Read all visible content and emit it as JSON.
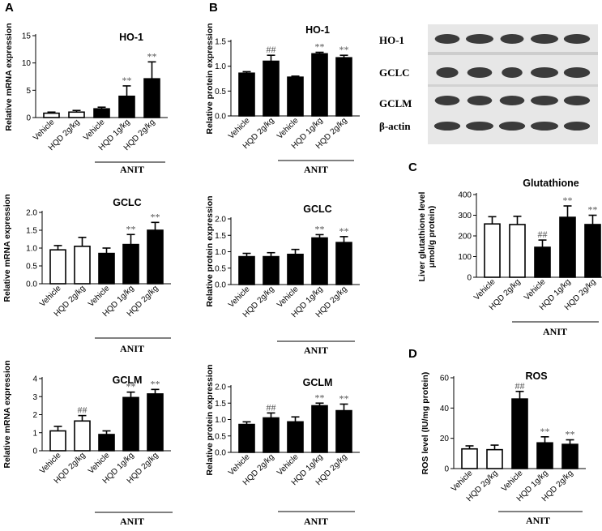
{
  "panel_labels": [
    "A",
    "B",
    "C",
    "D"
  ],
  "blot": {
    "labels": [
      "HO-1",
      "GCLC",
      "GCLM",
      "β-actin"
    ],
    "lanes": 5
  },
  "chart_data": [
    {
      "id": "A1",
      "type": "bar",
      "title": "HO-1",
      "ylabel": "Relative mRNA expression",
      "ylim": [
        0,
        15
      ],
      "yticks": [
        0,
        5,
        10,
        15
      ],
      "categories": [
        "Vehicle",
        "HQD 2g/kg",
        "Vehicle",
        "HQD 1g/kg",
        "HQD 2g/kg"
      ],
      "values": [
        0.8,
        1.0,
        1.6,
        3.9,
        7.1
      ],
      "errors": [
        0.2,
        0.3,
        0.3,
        1.9,
        3.1
      ],
      "bar_fill": [
        "white",
        "white",
        "black",
        "black",
        "black"
      ],
      "annotations": [
        "",
        "",
        "",
        "**",
        "**"
      ],
      "group_label": "ANIT"
    },
    {
      "id": "A2",
      "type": "bar",
      "title": "GCLC",
      "ylabel": "Relative mRNA expression",
      "ylim": [
        0,
        2.0
      ],
      "yticks": [
        0.0,
        0.5,
        1.0,
        1.5,
        2.0
      ],
      "categories": [
        "Vehicle",
        "HQD 2g/kg",
        "Vehicle",
        "HQD 1g/kg",
        "HQD 2g/kg"
      ],
      "values": [
        0.95,
        1.05,
        0.85,
        1.1,
        1.5
      ],
      "errors": [
        0.12,
        0.25,
        0.15,
        0.28,
        0.22
      ],
      "bar_fill": [
        "white",
        "white",
        "black",
        "black",
        "black"
      ],
      "annotations": [
        "",
        "",
        "",
        "**",
        "**"
      ],
      "group_label": "ANIT"
    },
    {
      "id": "A3",
      "type": "bar",
      "title": "GCLM",
      "ylabel": "Relative mRNA expression",
      "ylim": [
        0,
        4
      ],
      "yticks": [
        0,
        1,
        2,
        3,
        4
      ],
      "categories": [
        "Vehicle",
        "HQD 2g/kg",
        "Vehicle",
        "HQD 1g/kg",
        "HQD 2g/kg"
      ],
      "values": [
        1.1,
        1.65,
        0.9,
        2.95,
        3.15
      ],
      "errors": [
        0.25,
        0.3,
        0.2,
        0.3,
        0.25
      ],
      "bar_fill": [
        "white",
        "white",
        "black",
        "black",
        "black"
      ],
      "annotations": [
        "",
        "##",
        "",
        "**",
        "**"
      ],
      "group_label": "ANIT"
    },
    {
      "id": "B1",
      "type": "bar",
      "title": "HO-1",
      "ylabel": "Relative protein expression",
      "ylim": [
        0,
        1.5
      ],
      "yticks": [
        0.0,
        0.5,
        1.0,
        1.5
      ],
      "categories": [
        "Vehicle",
        "HQD 2g/kg",
        "Vehicle",
        "HQD 1g/kg",
        "HQD 2g/kg"
      ],
      "values": [
        0.86,
        1.1,
        0.78,
        1.25,
        1.17
      ],
      "errors": [
        0.03,
        0.12,
        0.02,
        0.03,
        0.05
      ],
      "bar_fill": [
        "black",
        "black",
        "black",
        "black",
        "black"
      ],
      "annotations": [
        "",
        "##",
        "",
        "**",
        "**"
      ],
      "group_label": "ANIT"
    },
    {
      "id": "B2",
      "type": "bar",
      "title": "GCLC",
      "ylabel": "Relative protein expression",
      "ylim": [
        0,
        2.0
      ],
      "yticks": [
        0.0,
        0.5,
        1.0,
        1.5,
        2.0
      ],
      "categories": [
        "Vehicle",
        "HQD 2g/kg",
        "Vehicle",
        "HQD 1g/kg",
        "HQD 2g/kg"
      ],
      "values": [
        0.85,
        0.85,
        0.92,
        1.42,
        1.28
      ],
      "errors": [
        0.1,
        0.12,
        0.15,
        0.1,
        0.18
      ],
      "bar_fill": [
        "black",
        "black",
        "black",
        "black",
        "black"
      ],
      "annotations": [
        "",
        "",
        "",
        "**",
        "**"
      ],
      "group_label": "ANIT"
    },
    {
      "id": "B3",
      "type": "bar",
      "title": "GCLM",
      "ylabel": "Relative protein expression",
      "ylim": [
        0,
        2.0
      ],
      "yticks": [
        0.0,
        0.5,
        1.0,
        1.5,
        2.0
      ],
      "categories": [
        "Vehicle",
        "HQD 2g/kg",
        "Vehicle",
        "HQD 1g/kg",
        "HQD 2g/kg"
      ],
      "values": [
        0.85,
        1.05,
        0.93,
        1.42,
        1.27
      ],
      "errors": [
        0.08,
        0.15,
        0.15,
        0.08,
        0.2
      ],
      "bar_fill": [
        "black",
        "black",
        "black",
        "black",
        "black"
      ],
      "annotations": [
        "",
        "##",
        "",
        "**",
        "**"
      ],
      "group_label": "ANIT"
    },
    {
      "id": "C",
      "type": "bar",
      "title": "Glutathione",
      "ylabel": [
        "Liver glutathione level",
        "μmol/g protein)"
      ],
      "ylim": [
        0,
        400
      ],
      "yticks": [
        0,
        100,
        200,
        300,
        400
      ],
      "categories": [
        "Vehicle",
        "HQD 2g/kg",
        "Vehicle",
        "HQD 1g/kg",
        "HQD 2g/kg"
      ],
      "values": [
        258,
        255,
        145,
        290,
        255
      ],
      "errors": [
        35,
        40,
        35,
        55,
        45
      ],
      "bar_fill": [
        "white",
        "white",
        "black",
        "black",
        "black"
      ],
      "annotations": [
        "",
        "",
        "##",
        "**",
        "**"
      ],
      "group_label": "ANIT"
    },
    {
      "id": "D",
      "type": "bar",
      "title": "ROS",
      "ylabel": "ROS level (IU/mg protein)",
      "ylim": [
        0,
        60
      ],
      "yticks": [
        0,
        20,
        40,
        60
      ],
      "categories": [
        "Vehicle",
        "HQD 2g/kg",
        "Vehicle",
        "HQD 1g/kg",
        "HQD 2g/kg"
      ],
      "values": [
        13,
        12.5,
        46,
        17,
        16
      ],
      "errors": [
        2,
        3,
        5,
        4,
        3
      ],
      "bar_fill": [
        "white",
        "white",
        "black",
        "black",
        "black"
      ],
      "annotations": [
        "",
        "",
        "##",
        "**",
        "**"
      ],
      "group_label": "ANIT"
    }
  ]
}
